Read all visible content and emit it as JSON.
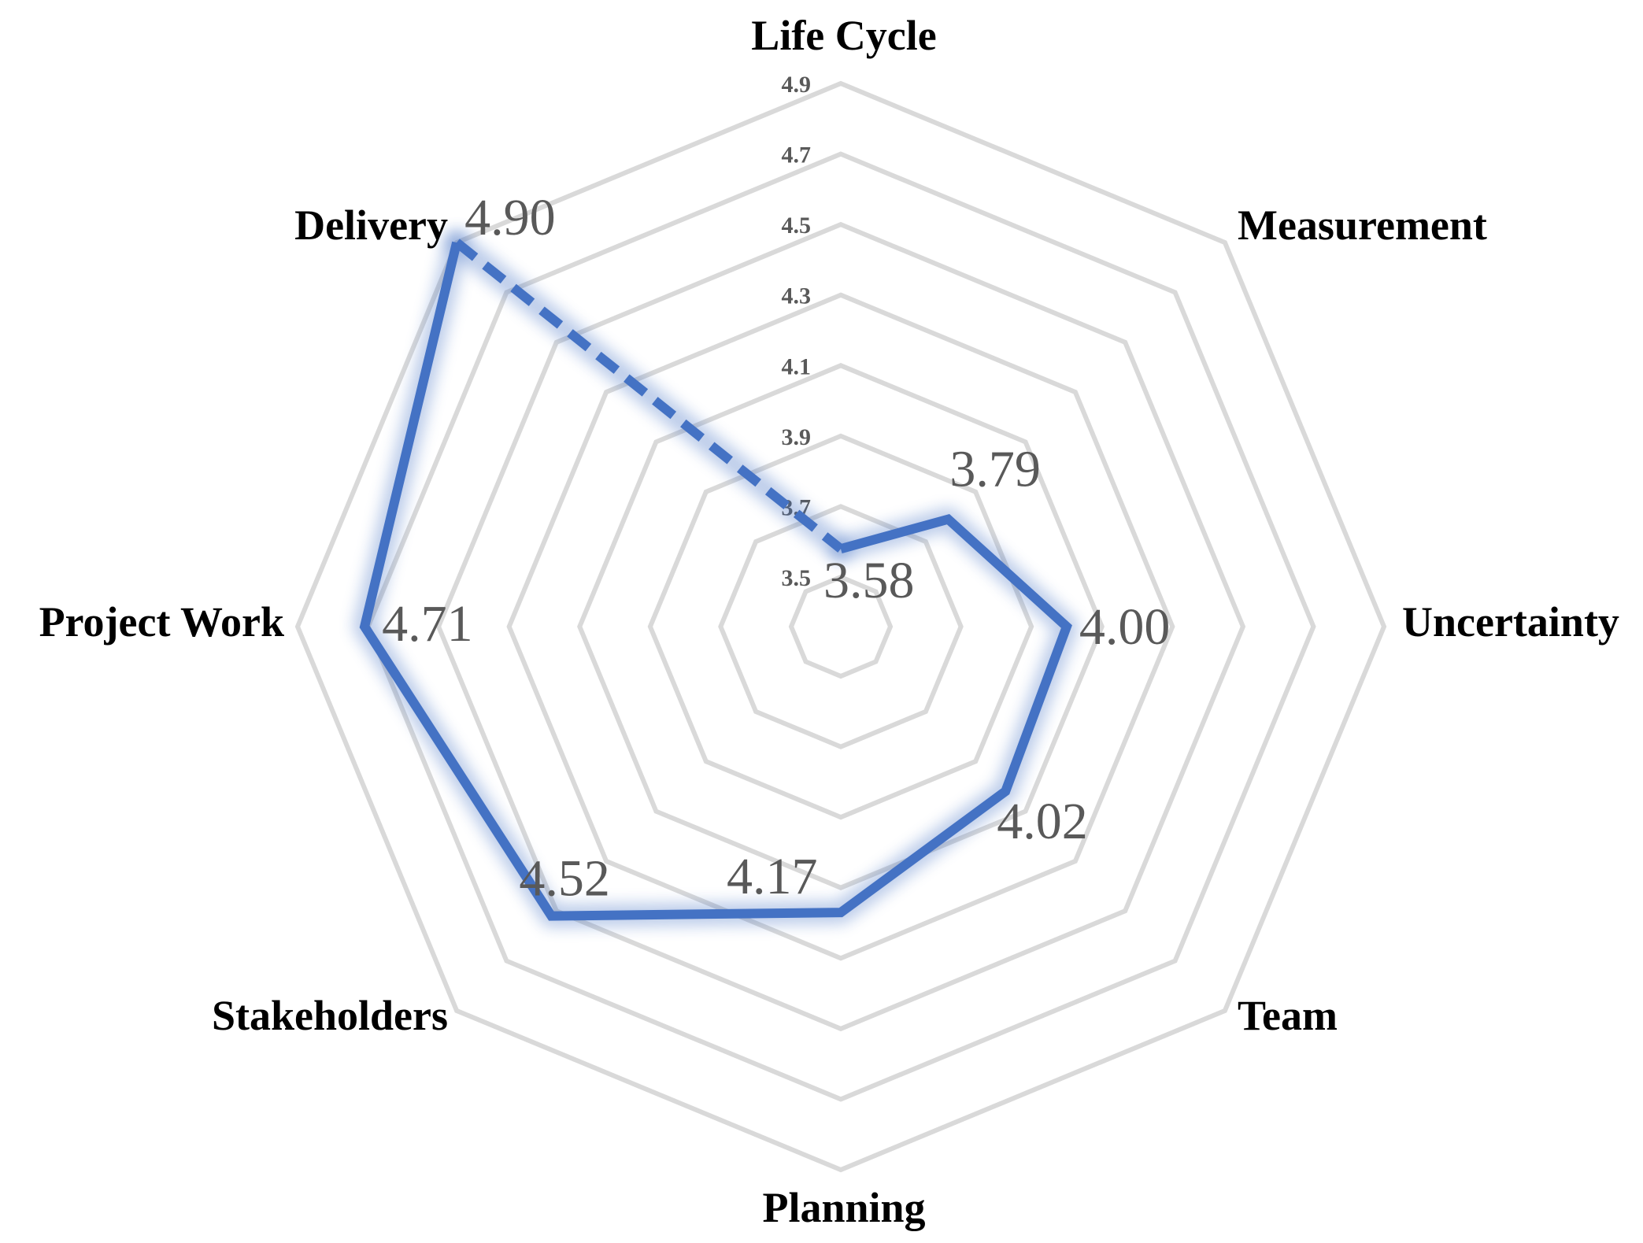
{
  "chart_data": {
    "type": "radar",
    "title": "",
    "categories": [
      "Life Cycle",
      "Measurement",
      "Uncertainty",
      "Team",
      "Planning",
      "Stakeholders",
      "Project Work",
      "Delivery"
    ],
    "series": [
      {
        "values": [
          3.58,
          3.79,
          4.0,
          4.02,
          4.17,
          4.52,
          4.71,
          4.9
        ],
        "data_labels": [
          "3.58",
          "3.79",
          "4.00",
          "4.02",
          "4.17",
          "4.52",
          "4.71",
          "4.90"
        ],
        "color": "#4472C4",
        "closing_segment_style": "dashed"
      }
    ],
    "axis": {
      "min": 3.5,
      "max": 4.9,
      "ticks": [
        3.5,
        3.7,
        3.9,
        4.1,
        4.3,
        4.5,
        4.7,
        4.9
      ],
      "tick_labels": [
        "3.5",
        "3.7",
        "3.9",
        "4.1",
        "4.3",
        "4.5",
        "4.7",
        "4.9"
      ]
    },
    "grid": true,
    "grid_color": "#D9D9D9",
    "legend": "none"
  }
}
